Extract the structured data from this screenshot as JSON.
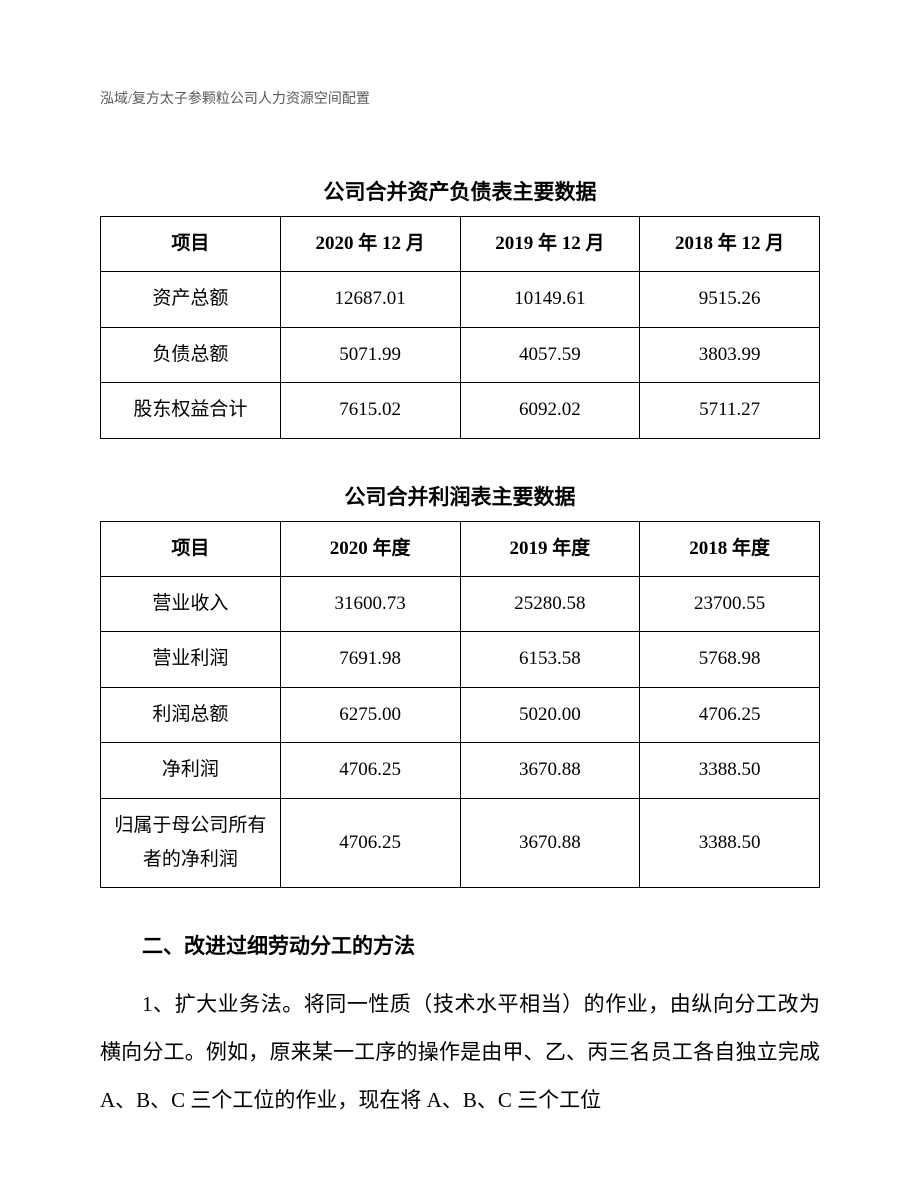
{
  "header": "泓域/复方太子参颗粒公司人力资源空间配置",
  "table1": {
    "type": "table",
    "title": "公司合并资产负债表主要数据",
    "columns": [
      "项目",
      "2020 年 12 月",
      "2019 年 12 月",
      "2018 年 12 月"
    ],
    "rows": [
      [
        "资产总额",
        "12687.01",
        "10149.61",
        "9515.26"
      ],
      [
        "负债总额",
        "5071.99",
        "4057.59",
        "3803.99"
      ],
      [
        "股东权益合计",
        "7615.02",
        "6092.02",
        "5711.27"
      ]
    ],
    "column_widths": [
      "25%",
      "25%",
      "25%",
      "25%"
    ],
    "border_color": "#000000",
    "border_width": 1.5,
    "font_size": 19,
    "header_font_weight": "bold"
  },
  "table2": {
    "type": "table",
    "title": "公司合并利润表主要数据",
    "columns": [
      "项目",
      "2020 年度",
      "2019 年度",
      "2018 年度"
    ],
    "rows": [
      [
        "营业收入",
        "31600.73",
        "25280.58",
        "23700.55"
      ],
      [
        "营业利润",
        "7691.98",
        "6153.58",
        "5768.98"
      ],
      [
        "利润总额",
        "6275.00",
        "5020.00",
        "4706.25"
      ],
      [
        "净利润",
        "4706.25",
        "3670.88",
        "3388.50"
      ],
      [
        "归属于母公司所有者的净利润",
        "4706.25",
        "3670.88",
        "3388.50"
      ]
    ],
    "column_widths": [
      "25%",
      "25%",
      "25%",
      "25%"
    ],
    "border_color": "#000000",
    "border_width": 1.5,
    "font_size": 19,
    "header_font_weight": "bold"
  },
  "section": {
    "heading": "二、改进过细劳动分工的方法",
    "paragraph": "1、扩大业务法。将同一性质（技术水平相当）的作业，由纵向分工改为横向分工。例如，原来某一工序的操作是由甲、乙、丙三名员工各自独立完成 A、B、C 三个工位的作业，现在将 A、B、C 三个工位"
  },
  "background_color": "#ffffff",
  "text_color": "#000000",
  "header_text_color": "#5a5a5a"
}
